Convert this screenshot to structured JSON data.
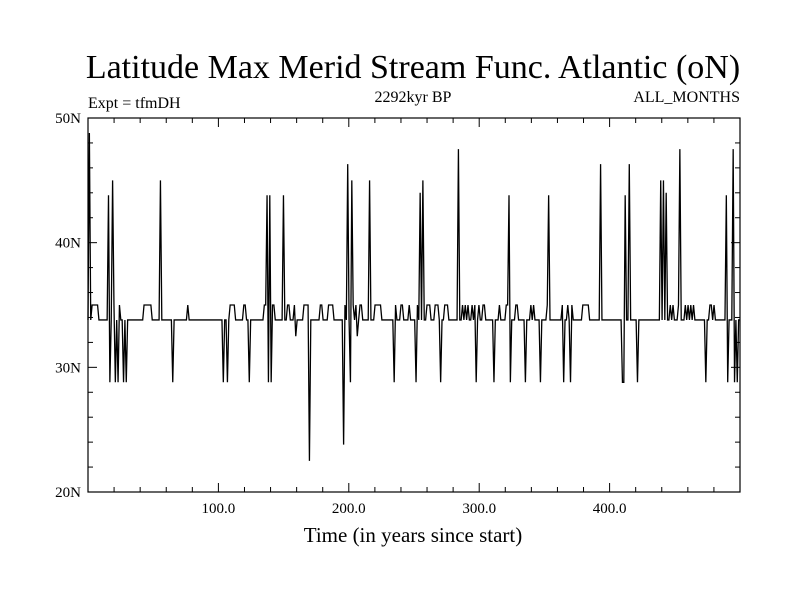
{
  "chart_data": {
    "type": "line",
    "title": "Latitude Max Merid Stream Func. Atlantic (oN)",
    "subtitle_left": "Expt = tfmDH",
    "subtitle_center": "2292kyr BP",
    "subtitle_right": "ALL_MONTHS",
    "xlabel": "Time (in years since start)",
    "ylabel": "",
    "xlim": [
      0,
      500
    ],
    "ylim": [
      20,
      50
    ],
    "x_ticks": [
      {
        "value": 100,
        "label": "100.0"
      },
      {
        "value": 200,
        "label": "200.0"
      },
      {
        "value": 300,
        "label": "300.0"
      },
      {
        "value": 400,
        "label": "400.0"
      }
    ],
    "y_ticks": [
      {
        "value": 20,
        "label": "20N"
      },
      {
        "value": 30,
        "label": "30N"
      },
      {
        "value": 40,
        "label": "40N"
      },
      {
        "value": 50,
        "label": "50N"
      }
    ],
    "series": [
      {
        "values": [
          33.8,
          48.8,
          33.8,
          35,
          35,
          35,
          35,
          35,
          33.8,
          33.8,
          33.8,
          33.8,
          33.8,
          33.8,
          33.8,
          43.8,
          28.8,
          33.8,
          45,
          35,
          28.8,
          33.8,
          28.8,
          35,
          33.8,
          33.8,
          28.8,
          33.8,
          28.8,
          33.8,
          33.8,
          33.8,
          33.8,
          33.8,
          33.8,
          33.8,
          33.8,
          33.8,
          33.8,
          33.8,
          33.8,
          35,
          35,
          35,
          35,
          35,
          35,
          33.8,
          33.8,
          33.8,
          33.8,
          33.8,
          33.8,
          45,
          33.8,
          33.8,
          33.8,
          33.8,
          33.8,
          33.8,
          33.8,
          33.8,
          28.8,
          33.8,
          33.8,
          33.8,
          33.8,
          33.8,
          33.8,
          33.8,
          33.8,
          33.8,
          33.8,
          35,
          33.8,
          33.8,
          33.8,
          33.8,
          33.8,
          33.8,
          33.8,
          33.8,
          33.8,
          33.8,
          33.8,
          33.8,
          33.8,
          33.8,
          33.8,
          33.8,
          33.8,
          33.8,
          33.8,
          33.8,
          33.8,
          33.8,
          33.8,
          33.8,
          33.8,
          28.8,
          33.8,
          33.8,
          28.8,
          33.8,
          35,
          35,
          35,
          35,
          33.8,
          33.8,
          33.8,
          33.8,
          33.8,
          33.8,
          35,
          35,
          33.8,
          33.8,
          28.8,
          33.8,
          33.8,
          33.8,
          33.8,
          33.8,
          33.8,
          33.8,
          33.8,
          33.8,
          33.8,
          35,
          35,
          43.8,
          28.8,
          43.8,
          28.8,
          35,
          35,
          33.8,
          33.8,
          33.8,
          33.8,
          33.8,
          33.8,
          43.8,
          33.8,
          33.8,
          35,
          35,
          33.8,
          33.8,
          33.8,
          35,
          32.5,
          33.8,
          33.8,
          33.8,
          33.8,
          33.8,
          35,
          35,
          35,
          35,
          22.5,
          33.8,
          33.8,
          33.8,
          33.8,
          33.8,
          33.8,
          33.8,
          35,
          35,
          33.8,
          33.8,
          33.8,
          33.8,
          35,
          35,
          35,
          35,
          33.8,
          33.8,
          33.8,
          33.8,
          33.8,
          33.8,
          33.8,
          23.8,
          35,
          33.8,
          46.3,
          33.8,
          28.8,
          45,
          35,
          33.8,
          35,
          32.5,
          33.8,
          35,
          35,
          33.8,
          33.8,
          33.8,
          33.8,
          33.8,
          45,
          33.8,
          33.8,
          33.8,
          35,
          35,
          35,
          35,
          35,
          33.8,
          33.8,
          33.8,
          33.8,
          33.8,
          33.8,
          33.8,
          33.8,
          33.8,
          28.8,
          35,
          33.8,
          33.8,
          33.8,
          35,
          35,
          33.8,
          33.8,
          33.8,
          33.8,
          35,
          33.8,
          33.8,
          33.8,
          33.8,
          28.8,
          35,
          33.8,
          44,
          33.8,
          45,
          33.8,
          33.8,
          35,
          35,
          35,
          33.8,
          33.8,
          33.8,
          35,
          35,
          35,
          33.8,
          28.8,
          33.8,
          33.8,
          35,
          35,
          35,
          33.8,
          33.8,
          33.8,
          33.8,
          33.8,
          33.8,
          33.8,
          47.5,
          33.8,
          33.8,
          35,
          33.8,
          35,
          33.8,
          35,
          33.8,
          33.8,
          35,
          33.8,
          35,
          28.8,
          33.8,
          35,
          33.8,
          33.8,
          35,
          35,
          33.8,
          33.8,
          33.8,
          33.8,
          33.8,
          33.8,
          28.8,
          33.8,
          33.8,
          33.8,
          35,
          33.8,
          33.8,
          33.8,
          33.8,
          35,
          35,
          43.8,
          28.8,
          33.8,
          33.8,
          33.8,
          35,
          35,
          33.8,
          33.8,
          33.8,
          33.8,
          33.8,
          28.8,
          33.8,
          33.8,
          33.8,
          35,
          33.8,
          35,
          33.8,
          33.8,
          33.8,
          33.8,
          28.8,
          33.8,
          33.8,
          33.8,
          33.8,
          35,
          43.8,
          33.8,
          33.8,
          33.8,
          33.8,
          33.8,
          33.8,
          33.8,
          33.8,
          33.8,
          35,
          28.8,
          33.8,
          33.8,
          35,
          33.8,
          28.8,
          35,
          33.8,
          33.8,
          33.8,
          33.8,
          33.8,
          33.8,
          33.8,
          35,
          35,
          35,
          35,
          35,
          33.8,
          33.8,
          33.8,
          33.8,
          33.8,
          33.8,
          33.8,
          33.8,
          46.3,
          33.8,
          33.8,
          33.8,
          33.8,
          33.8,
          33.8,
          33.8,
          33.8,
          33.8,
          33.8,
          33.8,
          33.8,
          33.8,
          33.8,
          33.8,
          28.8,
          28.8,
          43.8,
          33.8,
          33.8,
          46.3,
          33.8,
          33.8,
          33.8,
          33.8,
          33.8,
          28.8,
          33.8,
          33.8,
          33.8,
          33.8,
          33.8,
          33.8,
          33.8,
          33.8,
          33.8,
          33.8,
          33.8,
          33.8,
          33.8,
          33.8,
          33.8,
          33.8,
          45,
          33.8,
          45,
          33.8,
          44,
          33.8,
          33.8,
          35,
          33.8,
          35,
          33.8,
          33.8,
          33.8,
          35,
          47.5,
          33.8,
          33.8,
          33.8,
          35,
          33.8,
          35,
          33.8,
          35,
          33.8,
          35,
          33.8,
          33.8,
          33.8,
          33.8,
          33.8,
          33.8,
          33.8,
          33.8,
          28.8,
          33.8,
          33.8,
          35,
          35,
          33.8,
          35,
          33.8,
          33.8,
          33.8,
          33.8,
          33.8,
          33.8,
          33.8,
          33.8,
          43.8,
          28.8,
          33.8,
          33.8,
          33.8,
          47.5,
          28.8,
          33.8,
          28.8,
          33.8,
          33.8
        ]
      }
    ],
    "grid": false,
    "legend": "none"
  }
}
